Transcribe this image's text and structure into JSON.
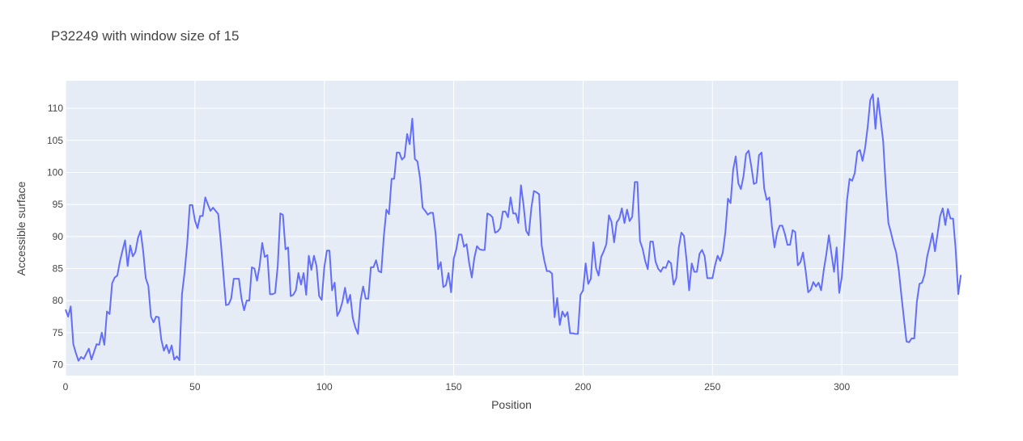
{
  "chart_data": {
    "type": "line",
    "title": "P32249 with window size of 15",
    "xlabel": "Position",
    "ylabel": "Accessible surface",
    "xlim": [
      0,
      345
    ],
    "ylim": [
      68.3,
      114.3
    ],
    "x_ticks": [
      0,
      50,
      100,
      150,
      200,
      250,
      300
    ],
    "y_ticks": [
      70,
      75,
      80,
      85,
      90,
      95,
      100,
      105,
      110
    ],
    "grid": true,
    "legend": "none",
    "colors": {
      "plot_bg": "#e5ecf6",
      "grid": "#ffffff",
      "line": "#636efa",
      "text": "#444444"
    },
    "series": [
      {
        "x_start": 0,
        "x_step": 1,
        "values": [
          78.6,
          77.5,
          79.1,
          73.2,
          71.8,
          70.6,
          71.2,
          70.9,
          71.7,
          72.5,
          70.8,
          72.0,
          73.2,
          73.1,
          75.0,
          73.1,
          78.3,
          77.9,
          82.7,
          83.6,
          83.9,
          86.1,
          87.8,
          89.4,
          85.4,
          88.6,
          86.9,
          87.6,
          89.8,
          90.9,
          87.7,
          83.5,
          82.3,
          77.5,
          76.6,
          77.5,
          77.4,
          73.9,
          72.2,
          73.1,
          71.8,
          73.0,
          70.8,
          71.3,
          70.7,
          81.0,
          84.4,
          88.8,
          94.9,
          94.9,
          92.5,
          91.3,
          93.2,
          93.2,
          96.1,
          95.0,
          94.0,
          94.5,
          94.0,
          93.5,
          89.1,
          84.2,
          79.3,
          79.4,
          80.3,
          83.4,
          83.4,
          83.4,
          80.3,
          78.5,
          80.0,
          80.0,
          85.2,
          85.0,
          83.1,
          85.4,
          89.0,
          86.8,
          87.1,
          81.0,
          81.0,
          81.2,
          85.4,
          93.6,
          93.4,
          88.0,
          88.3,
          80.7,
          80.9,
          81.6,
          84.3,
          82.5,
          84.3,
          80.9,
          87.0,
          84.8,
          87.0,
          85.4,
          80.7,
          80.1,
          85.2,
          87.8,
          87.8,
          81.6,
          82.8,
          77.6,
          78.4,
          79.8,
          82.0,
          79.6,
          80.9,
          77.3,
          75.8,
          74.8,
          80.0,
          82.2,
          80.3,
          80.3,
          85.2,
          85.2,
          86.3,
          84.6,
          84.4,
          90.0,
          94.2,
          93.5,
          99.0,
          99.0,
          103.1,
          103.1,
          102.0,
          102.4,
          106.0,
          104.4,
          108.4,
          102.1,
          101.7,
          99.1,
          94.5,
          94.0,
          93.4,
          93.7,
          93.7,
          90.5,
          84.9,
          86.0,
          82.1,
          82.4,
          84.3,
          81.3,
          86.5,
          88.0,
          90.3,
          90.3,
          88.4,
          88.8,
          85.8,
          83.6,
          86.7,
          88.5,
          88.0,
          87.9,
          87.9,
          93.6,
          93.4,
          93.0,
          90.6,
          90.8,
          91.3,
          93.9,
          93.9,
          93.0,
          96.1,
          93.6,
          93.6,
          92.1,
          98.0,
          94.9,
          90.9,
          90.2,
          94.4,
          97.1,
          96.9,
          96.6,
          88.6,
          86.3,
          84.6,
          84.6,
          84.2,
          77.4,
          80.4,
          76.2,
          78.3,
          77.5,
          78.2,
          74.9,
          74.9,
          74.8,
          74.8,
          80.9,
          81.6,
          85.8,
          82.6,
          83.4,
          89.1,
          85.1,
          83.9,
          86.8,
          87.7,
          88.8,
          93.3,
          92.3,
          89.1,
          92.2,
          92.8,
          94.4,
          92.1,
          94.2,
          92.4,
          93.1,
          98.5,
          98.5,
          89.3,
          88.1,
          86.2,
          84.9,
          89.2,
          89.2,
          86.1,
          85.0,
          84.5,
          85.2,
          85.1,
          86.2,
          85.8,
          82.5,
          83.5,
          88.3,
          90.6,
          90.1,
          86.3,
          81.6,
          85.8,
          84.5,
          84.5,
          87.3,
          87.9,
          86.9,
          83.5,
          83.5,
          83.5,
          85.5,
          87.0,
          86.2,
          87.5,
          90.7,
          95.9,
          95.2,
          100.4,
          102.5,
          98.3,
          97.4,
          99.4,
          102.9,
          103.4,
          101.0,
          98.2,
          98.4,
          102.7,
          103.1,
          97.5,
          95.7,
          96.1,
          91.5,
          88.3,
          90.6,
          91.7,
          91.7,
          90.4,
          88.7,
          88.7,
          91.0,
          90.7,
          85.5,
          86.0,
          87.5,
          84.7,
          81.3,
          81.7,
          82.9,
          82.2,
          82.8,
          81.6,
          84.7,
          87.2,
          90.2,
          87.3,
          84.5,
          88.3,
          81.2,
          83.7,
          89.2,
          95.6,
          99.0,
          98.7,
          99.9,
          103.2,
          103.5,
          101.8,
          103.8,
          107.1,
          111.3,
          112.2,
          106.8,
          111.6,
          108.2,
          104.8,
          97.7,
          92.1,
          90.6,
          88.9,
          87.5,
          84.8,
          80.9,
          77.2,
          73.6,
          73.5,
          74.1,
          74.1,
          79.8,
          82.6,
          82.8,
          84.1,
          86.9,
          88.6,
          90.5,
          87.7,
          90.4,
          93.2,
          94.4,
          91.8,
          94.3,
          92.8,
          92.8,
          88.0,
          81.0,
          84.0
        ]
      }
    ]
  }
}
